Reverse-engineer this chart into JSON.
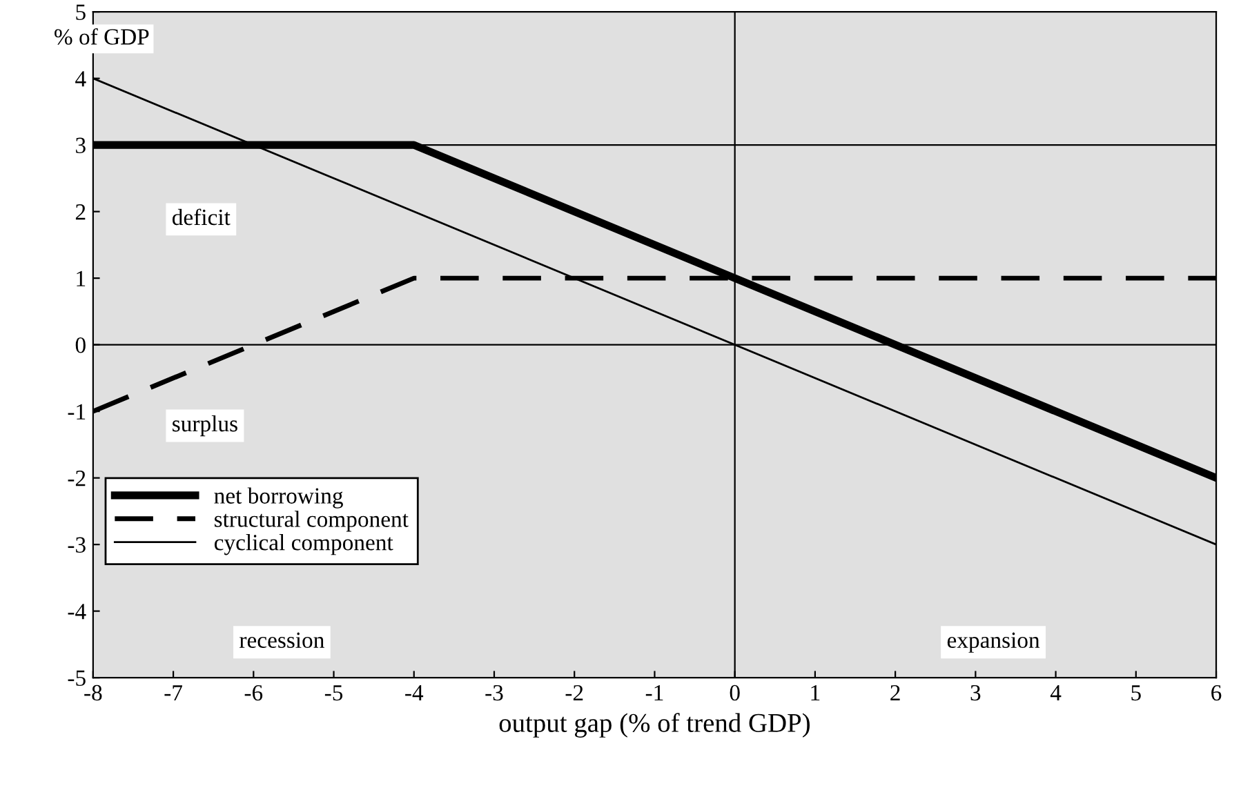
{
  "chart_data": {
    "type": "line",
    "ylabel": "% of GDP",
    "xlabel": "output gap (% of trend GDP)",
    "series": [
      {
        "name": "net borrowing",
        "color": "#000000",
        "x": [
          -8,
          -4,
          0,
          6
        ],
        "values": [
          3,
          3,
          1,
          -2
        ],
        "line_style": "solid"
      },
      {
        "name": "structural component",
        "color": "#000000",
        "x": [
          -8,
          -4,
          6
        ],
        "values": [
          -1,
          1,
          1
        ],
        "line_style": "dashed"
      },
      {
        "name": "cyclical component",
        "color": "#000000",
        "x": [
          -8,
          6
        ],
        "values": [
          4,
          -3
        ],
        "line_style": "solid"
      }
    ],
    "xlim": [
      -8,
      6
    ],
    "xticks": [
      -8,
      -7,
      -6,
      -5,
      -4,
      -3,
      -2,
      -1,
      0,
      1,
      2,
      3,
      4,
      5,
      6
    ],
    "ylim": [
      -5,
      5
    ],
    "yticks": [
      -5,
      -4,
      -3,
      -2,
      -1,
      0,
      1,
      2,
      3,
      4,
      5
    ],
    "ref_lines": [
      {
        "axis": "y",
        "value": 3
      },
      {
        "axis": "y",
        "value": 0
      },
      {
        "axis": "x",
        "value": 0
      }
    ],
    "annotations": [
      "deficit",
      "surplus",
      "recession",
      "expansion"
    ],
    "grid": false,
    "legend": "bottom left",
    "marker": "none"
  }
}
